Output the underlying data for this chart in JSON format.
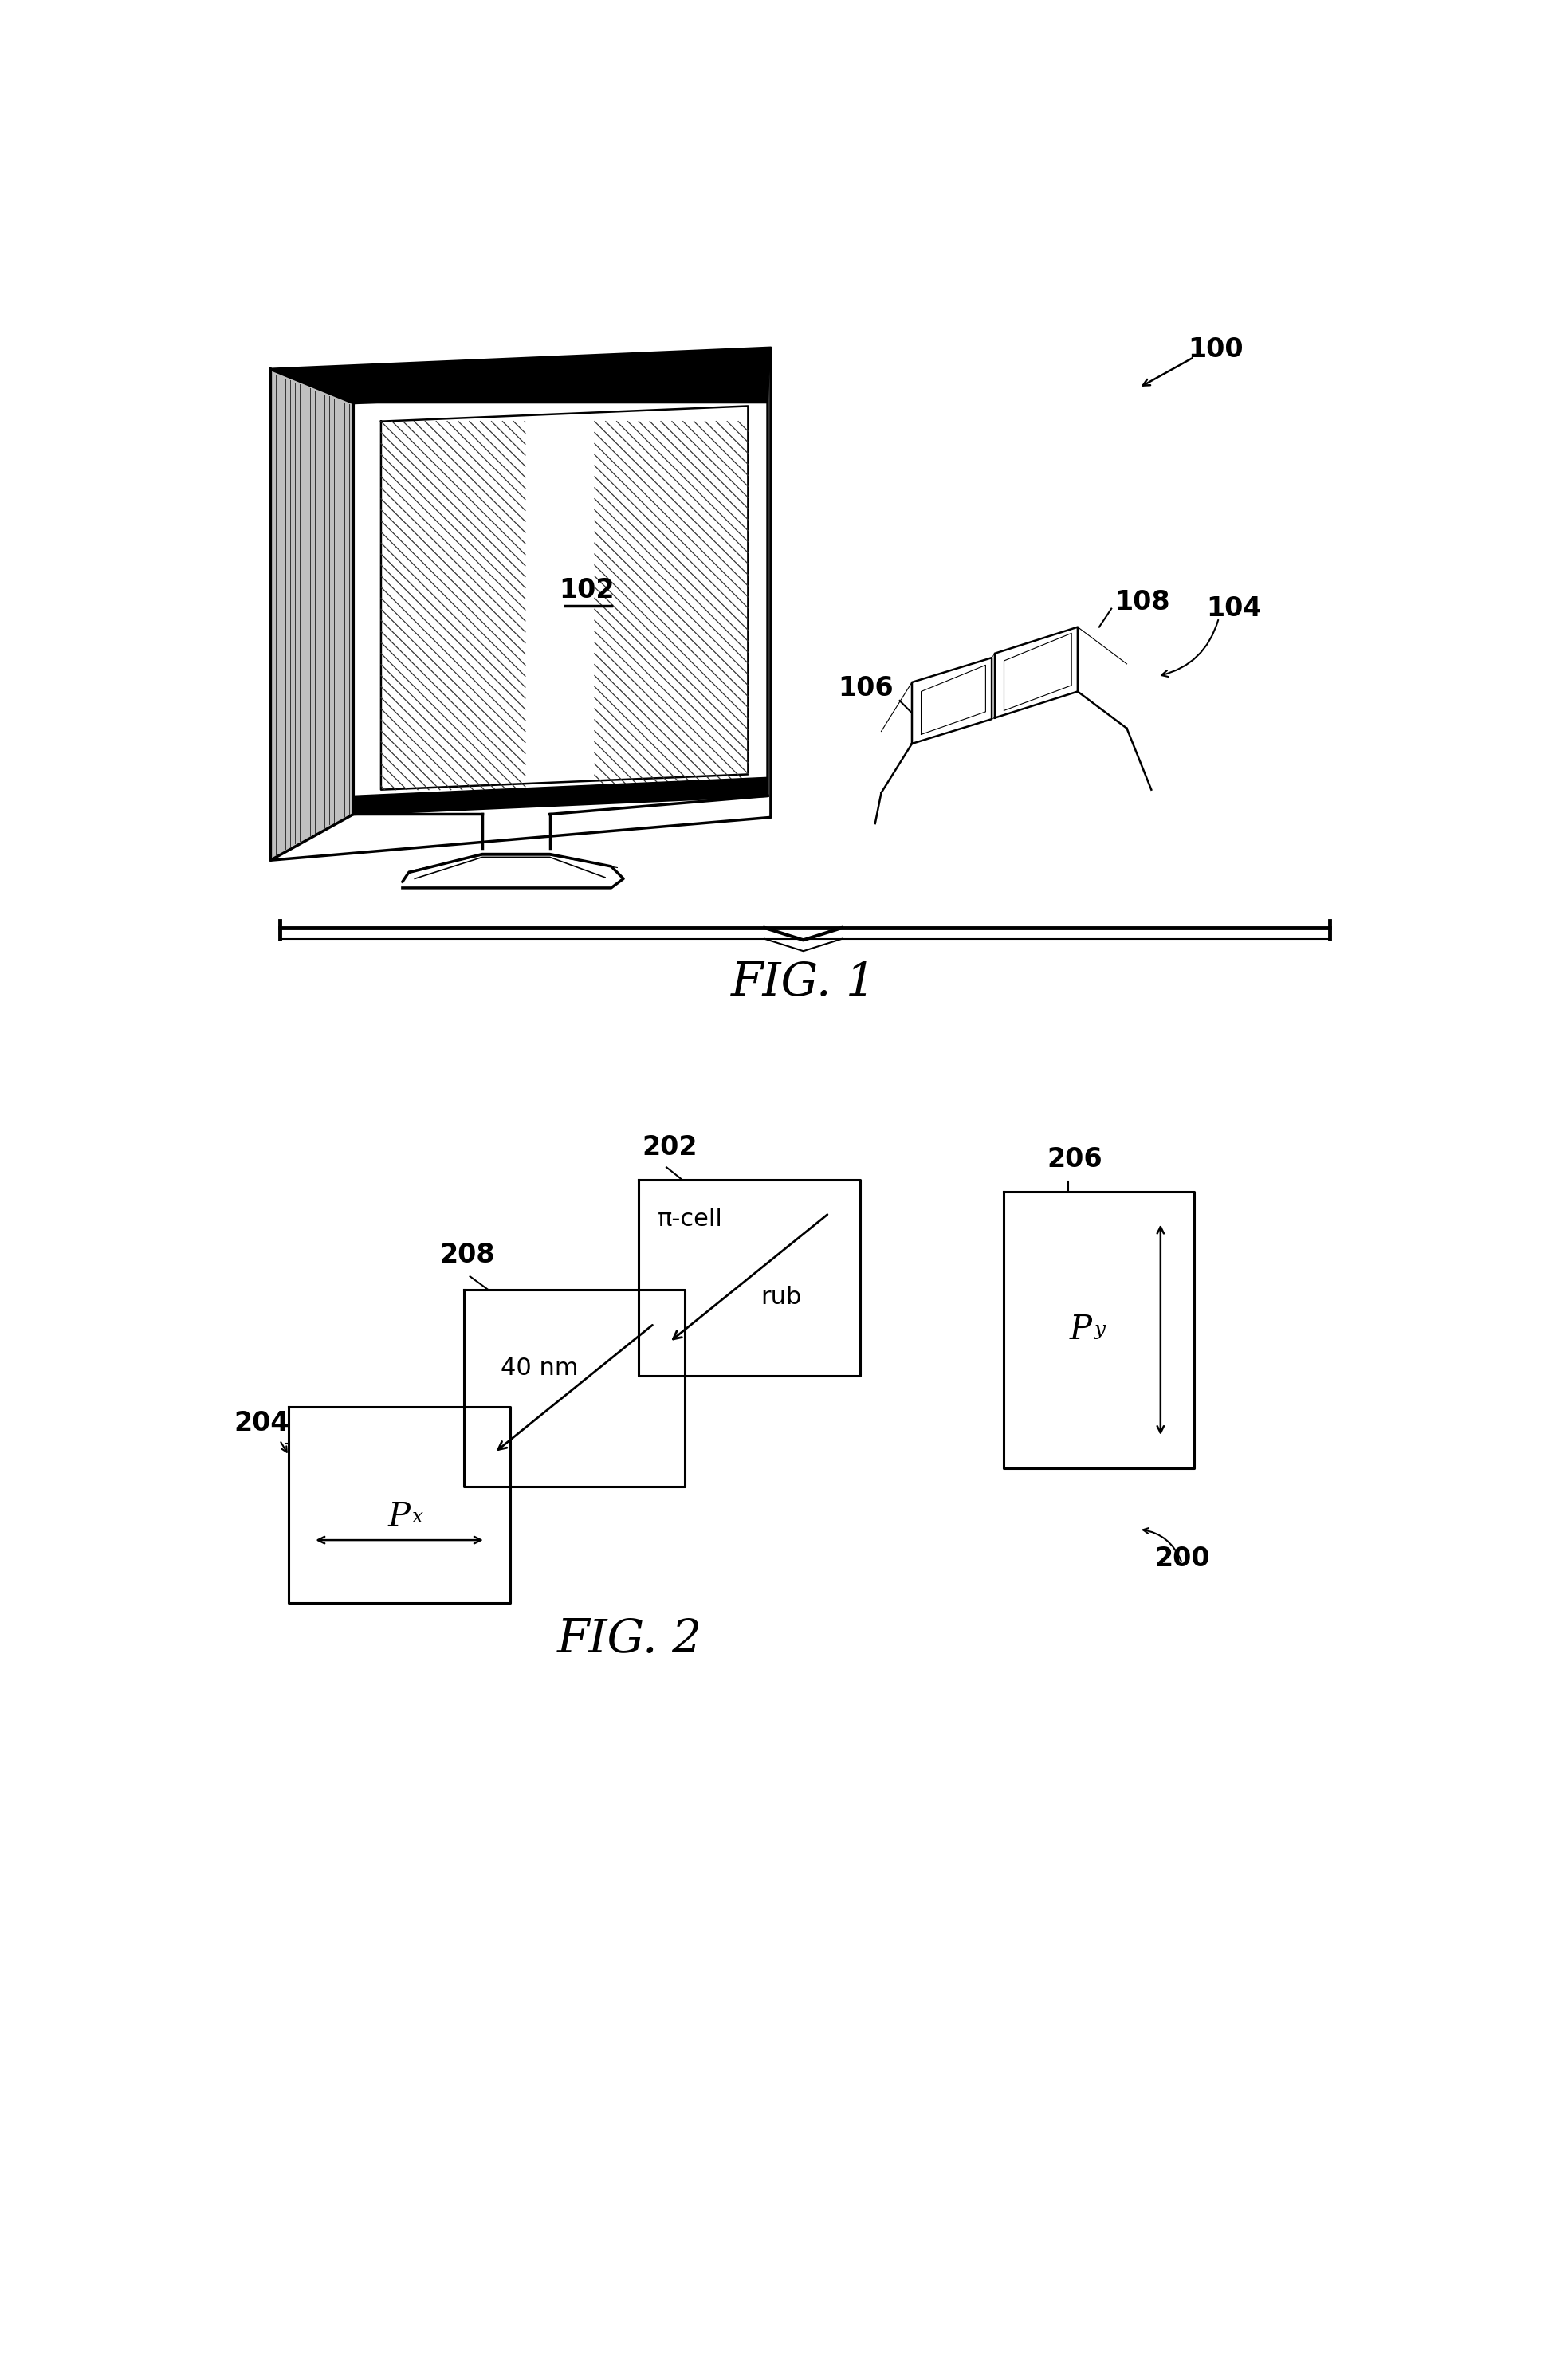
{
  "fig_width": 19.67,
  "fig_height": 29.62,
  "bg_color": "#ffffff",
  "fig1_label": "FIG. 1",
  "fig2_label": "FIG. 2",
  "ref_100": "100",
  "ref_102": "102",
  "ref_104": "104",
  "ref_106": "106",
  "ref_108": "108",
  "ref_200": "200",
  "ref_202": "202",
  "ref_204": "204",
  "ref_206": "206",
  "ref_208": "208",
  "label_40nm": "40 nm",
  "label_pi_cell": "π‐cell",
  "label_rub": "rub",
  "label_Px": "P",
  "label_Py": "P",
  "sub_x": "x",
  "sub_y": "y"
}
